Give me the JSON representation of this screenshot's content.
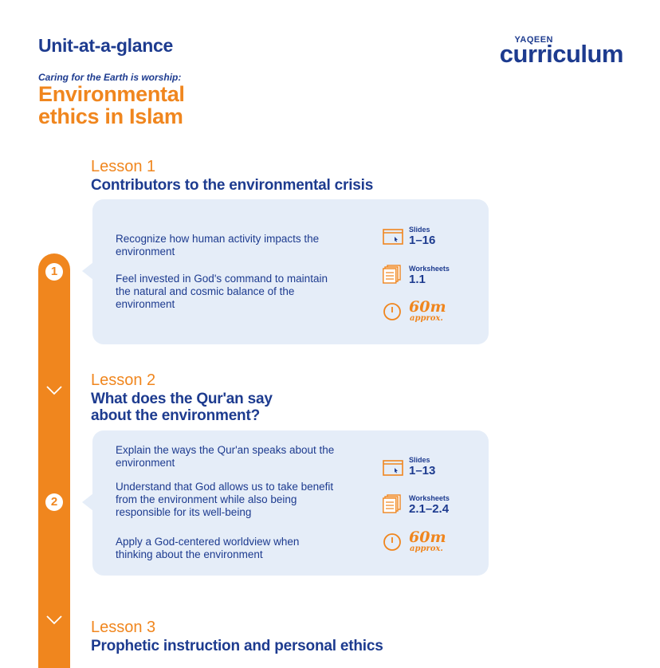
{
  "header": {
    "unit_title": "Unit-at-a-glance",
    "subtitle": "Caring for the Earth is worship:",
    "title_line1": "Environmental",
    "title_line2": "ethics in Islam"
  },
  "brand": {
    "top": "YAQEEN",
    "main": "curriculum"
  },
  "colors": {
    "primary": "#1d3b8f",
    "accent": "#f0861e",
    "card": "#e5edf8"
  },
  "lessons": [
    {
      "label": "Lesson 1",
      "number": "1",
      "title_line1": "Contributors to the environmental crisis",
      "objectives": [
        "Recognize how human activity impacts the environment",
        "Feel invested in God's command to maintain the natural and cosmic balance of the environment"
      ],
      "slides_label": "Slides",
      "slides": "1–16",
      "worksheets_label": "Worksheets",
      "worksheets": "1.1",
      "time": "60m",
      "time_note": "approx."
    },
    {
      "label": "Lesson 2",
      "number": "2",
      "title_line1": "What does the Qur'an say",
      "title_line2": "about the environment?",
      "objectives": [
        "Explain the ways the Qur'an speaks about the environment",
        "Understand that God allows us to take benefit from the environment while also being responsible for its well-being",
        "Apply a God-centered worldview when thinking about the environment"
      ],
      "slides_label": "Slides",
      "slides": "1–13",
      "worksheets_label": "Worksheets",
      "worksheets": "2.1–2.4",
      "time": "60m",
      "time_note": "approx."
    },
    {
      "label": "Lesson 3",
      "title_line1": "Prophetic instruction and personal ethics"
    }
  ],
  "icons": [
    "slides-icon",
    "worksheets-icon",
    "clock-icon",
    "chevron-down-icon"
  ]
}
